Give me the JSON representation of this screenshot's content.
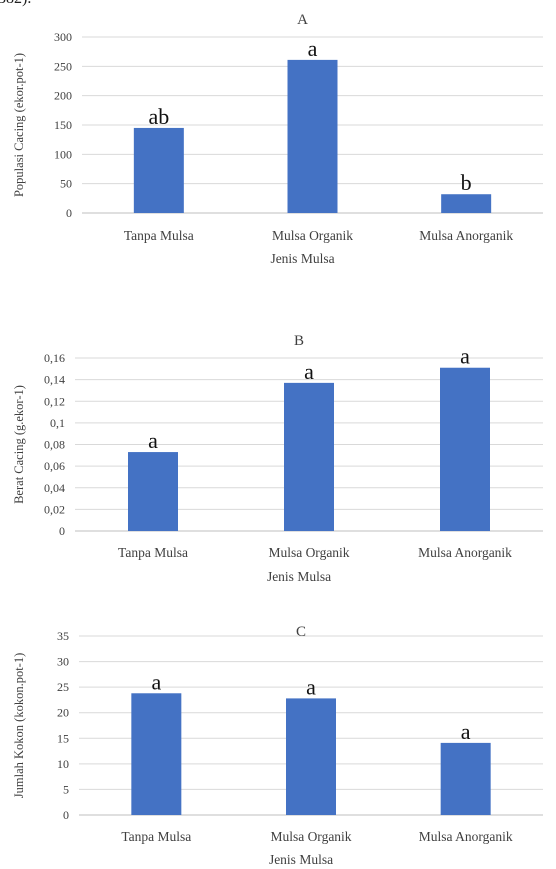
{
  "top_fragment": "382).",
  "chart_data": [
    {
      "type": "bar",
      "title": "A",
      "categories": [
        "Tanpa Mulsa",
        "Mulsa Organik",
        "Mulsa Anorganik"
      ],
      "values": [
        145,
        261,
        32
      ],
      "bar_labels": [
        "ab",
        "a",
        "b"
      ],
      "xlabel": "Jenis Mulsa",
      "ylabel": "Populasi Cacing (ekor.pot-1)",
      "ylim": [
        0,
        300
      ],
      "yticks": [
        "0",
        "50",
        "100",
        "150",
        "200",
        "250",
        "300"
      ],
      "grid": true,
      "color": "#4472c4"
    },
    {
      "type": "bar",
      "title": "B",
      "categories": [
        "Tanpa Mulsa",
        "Mulsa Organik",
        "Mulsa Anorganik"
      ],
      "values": [
        0.073,
        0.137,
        0.151
      ],
      "bar_labels": [
        "a",
        "a",
        "a"
      ],
      "xlabel": "Jenis Mulsa",
      "ylabel": "Berat Cacing (g.ekor-1)",
      "ylim": [
        0,
        0.16
      ],
      "yticks": [
        "0",
        "0,02",
        "0,04",
        "0,06",
        "0,08",
        "0,1",
        "0,12",
        "0,14",
        "0,16"
      ],
      "grid": true,
      "color": "#4472c4"
    },
    {
      "type": "bar",
      "title": "C",
      "categories": [
        "Tanpa Mulsa",
        "Mulsa Organik",
        "Mulsa Anorganik"
      ],
      "values": [
        23.8,
        22.8,
        14.1
      ],
      "bar_labels": [
        "a",
        "a",
        "a"
      ],
      "xlabel": "Jenis Mulsa",
      "ylabel": "Jumlah Kokon (kokon.pot-1)",
      "ylim": [
        0,
        35
      ],
      "yticks": [
        "0",
        "5",
        "10",
        "15",
        "20",
        "25",
        "30",
        "35"
      ],
      "grid": true,
      "color": "#4472c4"
    }
  ]
}
